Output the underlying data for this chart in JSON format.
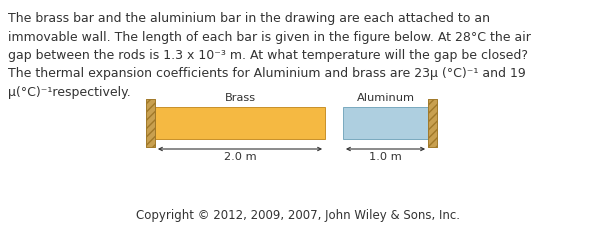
{
  "background_color": "#ffffff",
  "text_color": "#333333",
  "line1": "The brass bar and the aluminium bar in the drawing are each attached to an",
  "line2": "immovable wall. The length of each bar is given in the figure below. At 28°C the air",
  "line3": "gap between the rods is 1.3 x 10⁻³ m. At what temperature will the gap be closed?",
  "line4": "The thermal expansion coefficients for Aluminium and brass are 23μ (°C)⁻¹ and 19",
  "line5": "μ(°C)⁻¹respectively.",
  "copyright": "Copyright © 2012, 2009, 2007, John Wiley & Sons, Inc.",
  "brass_color": "#f5b942",
  "brass_edge_color": "#c8902a",
  "aluminum_color": "#aecfe0",
  "aluminum_edge_color": "#7aaabf",
  "wall_color": "#c8a050",
  "wall_edge_color": "#a07828",
  "brass_label": "Brass",
  "aluminum_label": "Aluminum",
  "brass_dim": "2.0 m",
  "aluminum_dim": "1.0 m",
  "font_size_para": 9.0,
  "font_size_label": 8.2,
  "font_size_copyright": 8.5
}
